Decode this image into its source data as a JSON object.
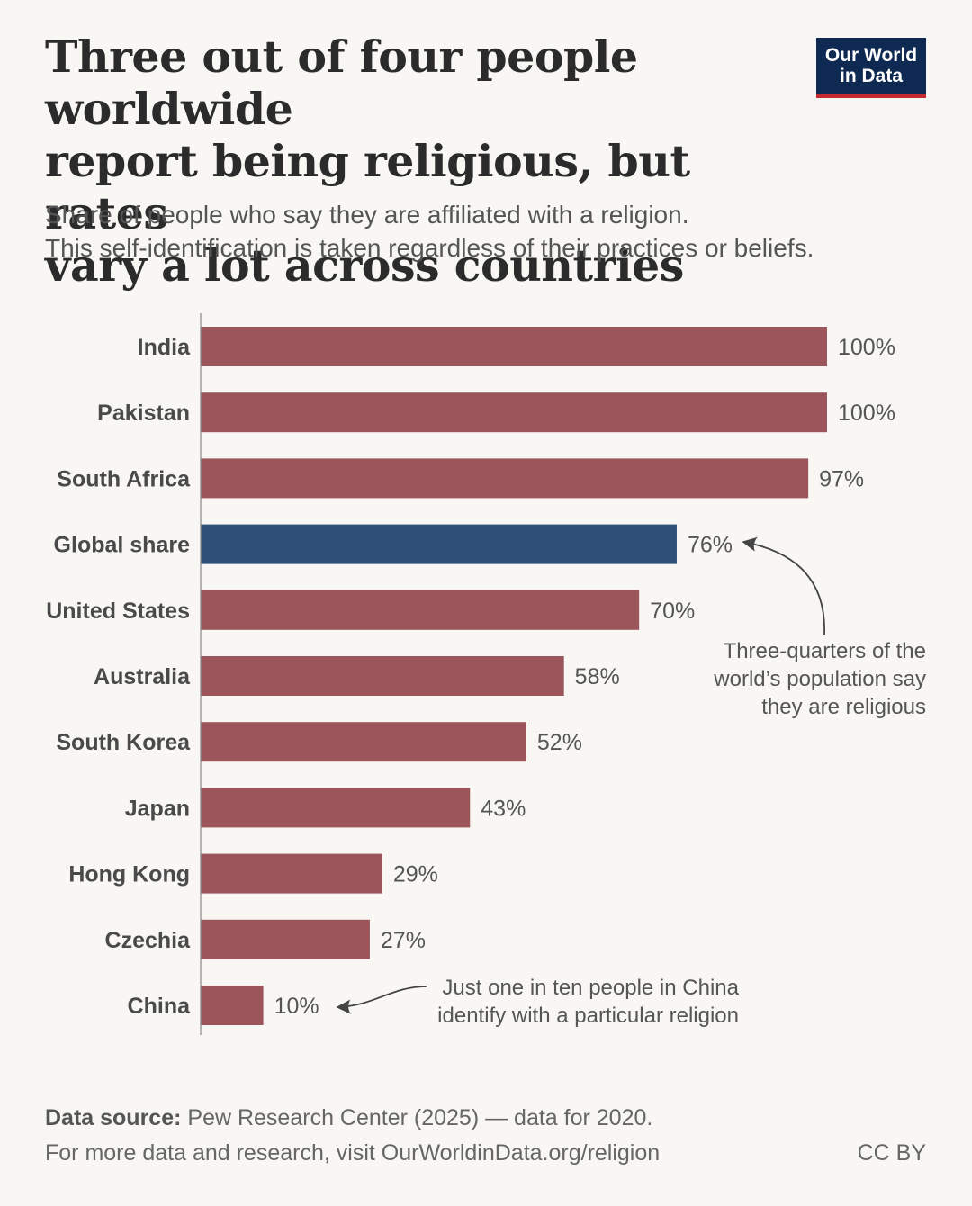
{
  "header": {
    "title_lines": [
      "Three out of four people worldwide",
      "report being religious, but rates",
      "vary a lot across countries"
    ],
    "subtitle_lines": [
      "Share of people who say they are affiliated with a religion.",
      "This self-identification is taken regardless of their practices or beliefs."
    ],
    "logo_lines": [
      "Our World",
      "in Data"
    ]
  },
  "colors": {
    "bar": "#9c555a",
    "highlight": "#2f5177",
    "text": "#4f4f4f",
    "logo_bg": "#0f2a52",
    "logo_accent": "#c72a31"
  },
  "chart_data": {
    "type": "bar",
    "orientation": "horizontal",
    "title": "Three out of four people worldwide report being religious, but rates vary a lot across countries",
    "xlabel": "",
    "ylabel": "",
    "xlim": [
      0,
      100
    ],
    "unit": "%",
    "grid": false,
    "categories": [
      "India",
      "Pakistan",
      "South Africa",
      "Global share",
      "United States",
      "Australia",
      "South Korea",
      "Japan",
      "Hong Kong",
      "Czechia",
      "China"
    ],
    "values": [
      100,
      100,
      97,
      76,
      70,
      58,
      52,
      43,
      29,
      27,
      10
    ],
    "highlight_category": "Global share",
    "annotations": [
      {
        "target": "Global share",
        "lines": [
          "Three-quarters of the",
          "world’s population say",
          "they are religious"
        ]
      },
      {
        "target": "China",
        "lines": [
          "Just one in ten people in China",
          "identify with a particular religion"
        ]
      }
    ]
  },
  "footer": {
    "source_label": "Data source:",
    "source_text": " Pew Research Center (2025) — data for 2020.",
    "more_info": "For more data and research, visit OurWorldinData.org/religion",
    "license": "CC BY"
  }
}
